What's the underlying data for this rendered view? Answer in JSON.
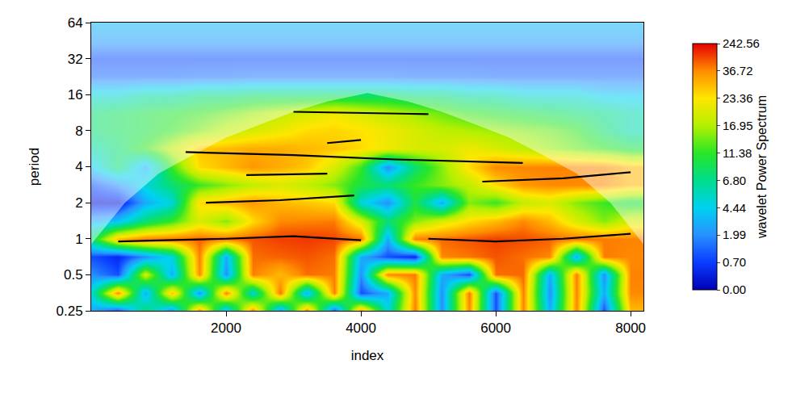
{
  "chart_data": {
    "type": "heatmap",
    "x_label": "index",
    "y_label": "period",
    "log": "y",
    "xlim": [
      0,
      8190
    ],
    "xticks": [
      2000,
      4000,
      6000,
      8000
    ],
    "ylim": [
      0.25,
      64
    ],
    "yticks": [
      0.25,
      0.5,
      1,
      2,
      4,
      8,
      16,
      32,
      64
    ],
    "x": [
      0,
      400,
      800,
      1200,
      1600,
      2000,
      2400,
      2800,
      3200,
      3600,
      4000,
      4400,
      4800,
      5200,
      5600,
      6000,
      6400,
      6800,
      7200,
      7600,
      8000
    ],
    "y": [
      0.25,
      0.35,
      0.5,
      0.71,
      1,
      1.41,
      2,
      2.83,
      4,
      5.66,
      8,
      11.31,
      16,
      22.63,
      32,
      45.25,
      64
    ],
    "cells": [
      [
        3,
        1,
        8,
        2,
        40,
        3,
        50,
        2,
        60,
        1,
        40,
        5,
        60,
        2,
        40,
        1,
        50,
        3,
        40,
        1,
        30
      ],
      [
        5,
        40,
        3,
        30,
        2,
        60,
        5,
        80,
        3,
        60,
        1,
        3,
        40,
        2,
        70,
        1,
        60,
        2,
        50,
        3,
        40
      ],
      [
        2,
        1,
        20,
        3,
        40,
        2,
        60,
        30,
        80,
        60,
        2,
        40,
        60,
        3,
        1,
        80,
        90,
        3,
        60,
        2,
        50
      ],
      [
        1,
        0.5,
        2,
        5,
        60,
        3,
        80,
        100,
        120,
        80,
        3,
        1,
        0.5,
        40,
        70,
        120,
        80,
        40,
        3,
        60,
        40
      ],
      [
        8,
        30,
        60,
        80,
        100,
        90,
        120,
        150,
        160,
        140,
        80,
        3,
        60,
        90,
        120,
        150,
        130,
        100,
        80,
        60,
        50
      ],
      [
        3,
        4,
        8,
        12,
        20,
        15,
        25,
        40,
        50,
        60,
        20,
        8,
        15,
        20,
        25,
        30,
        40,
        30,
        20,
        15,
        20
      ],
      [
        0.3,
        0.3,
        3,
        5,
        25,
        30,
        35,
        30,
        28,
        25,
        5,
        2,
        10,
        3,
        15,
        12,
        18,
        20,
        15,
        12,
        10
      ],
      [
        1,
        2,
        5,
        8,
        12,
        15,
        18,
        20,
        18,
        15,
        10,
        8,
        12,
        15,
        18,
        25,
        35,
        40,
        40,
        38,
        30
      ],
      [
        4,
        8,
        3,
        12,
        25,
        30,
        35,
        32,
        28,
        20,
        12,
        2,
        8,
        15,
        25,
        40,
        45,
        50,
        45,
        40,
        30
      ],
      [
        6,
        8,
        12,
        18,
        28,
        30,
        32,
        32,
        30,
        28,
        25,
        22,
        20,
        20,
        22,
        20,
        18,
        16,
        14,
        12,
        10
      ],
      [
        8,
        9,
        10,
        12,
        15,
        18,
        20,
        22,
        25,
        26,
        24,
        22,
        20,
        18,
        17,
        16,
        15,
        14,
        12,
        8,
        6
      ],
      [
        8,
        9,
        10,
        11,
        12,
        14,
        16,
        18,
        20,
        22,
        20,
        18,
        16,
        14,
        12,
        11,
        10,
        9,
        8,
        7,
        6
      ],
      [
        5,
        5,
        6,
        6,
        7,
        7,
        8,
        8,
        8,
        8,
        8,
        8,
        7,
        7,
        6,
        6,
        5,
        5,
        5,
        4,
        4
      ],
      [
        1.5,
        1.5,
        1.5,
        1.5,
        1.6,
        1.6,
        1.7,
        1.7,
        1.7,
        1.7,
        1.7,
        1.7,
        1.6,
        1.6,
        1.6,
        1.5,
        1.5,
        1.5,
        1.5,
        1.5,
        1.5
      ],
      [
        1,
        1,
        1,
        1,
        1,
        1,
        1,
        1,
        1,
        1,
        1,
        1,
        1,
        1,
        1,
        1,
        1,
        1,
        1,
        1,
        1
      ],
      [
        2.5,
        2.5,
        2.5,
        2.5,
        2.5,
        2.5,
        2.5,
        2.5,
        2.5,
        2.5,
        2.5,
        2.5,
        2.5,
        2.5,
        2.5,
        2.5,
        2.5,
        2.5,
        2.5,
        2.5,
        2.5
      ],
      [
        3.5,
        3.5,
        3.5,
        3.5,
        3.5,
        3.5,
        3.5,
        3.5,
        3.5,
        3.5,
        3.5,
        3.5,
        3.5,
        3.5,
        3.5,
        3.5,
        3.5,
        3.5,
        3.5,
        3.5,
        3.5
      ]
    ],
    "colorbar": {
      "title": "wavelet Power Spectrum",
      "range": [
        0,
        242.56
      ],
      "ticks": [
        {
          "value": 0,
          "label": "0.00"
        },
        {
          "value": 0.7,
          "label": "0.70"
        },
        1.99,
        4.44,
        {
          "value": 6.8,
          "label": "6.80"
        },
        11.38,
        16.95,
        23.36,
        36.72,
        242.56
      ]
    },
    "coi": {
      "x": [
        0,
        500,
        1000,
        1500,
        2000,
        2500,
        3000,
        3500,
        4096,
        4700,
        5200,
        5700,
        6200,
        6700,
        7200,
        7700,
        8190
      ],
      "y": [
        0.9,
        2,
        3.5,
        5,
        7,
        9,
        11.5,
        14,
        16.5,
        14,
        11.5,
        9,
        7,
        5,
        3.5,
        2,
        0.9
      ]
    },
    "ridges": [
      {
        "x": [
          3000,
          4000,
          5000
        ],
        "y": [
          11.5,
          11.2,
          11
        ]
      },
      {
        "x": [
          3500,
          4000
        ],
        "y": [
          6.3,
          6.7
        ]
      },
      {
        "x": [
          1400,
          3000,
          4500,
          6400
        ],
        "y": [
          5.3,
          5,
          4.6,
          4.3
        ]
      },
      {
        "x": [
          2300,
          3500
        ],
        "y": [
          3.4,
          3.5
        ]
      },
      {
        "x": [
          5800,
          7000,
          8000
        ],
        "y": [
          3,
          3.2,
          3.6
        ]
      },
      {
        "x": [
          1700,
          2800,
          3900
        ],
        "y": [
          2,
          2.1,
          2.3
        ]
      },
      {
        "x": [
          400,
          2000,
          3000,
          4000
        ],
        "y": [
          0.95,
          1,
          1.05,
          0.97
        ]
      },
      {
        "x": [
          5000,
          6000,
          7000,
          8000
        ],
        "y": [
          1,
          0.95,
          1,
          1.1
        ]
      }
    ]
  }
}
